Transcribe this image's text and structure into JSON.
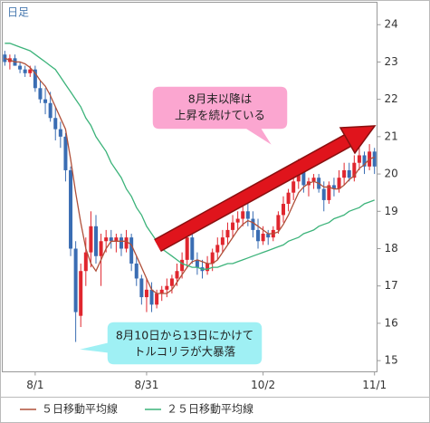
{
  "chart_data": {
    "type": "candlestick",
    "title": "日足",
    "categories": [
      null,
      null,
      null,
      null,
      null,
      null,
      "8/1",
      null,
      null,
      null,
      null,
      null,
      null,
      null,
      null,
      null,
      null,
      null,
      null,
      null,
      null,
      null,
      null,
      null,
      null,
      null,
      null,
      null,
      "8/31",
      null,
      null,
      null,
      null,
      null,
      null,
      null,
      null,
      null,
      null,
      null,
      null,
      null,
      null,
      null,
      null,
      null,
      null,
      null,
      null,
      null,
      null,
      "10/2",
      null,
      null,
      null,
      null,
      null,
      null,
      null,
      null,
      null,
      null,
      null,
      null,
      null,
      null,
      null,
      null,
      null,
      null,
      null,
      null,
      null,
      "11/1"
    ],
    "open": [
      23.2,
      23.0,
      23.1,
      22.9,
      22.8,
      22.7,
      22.8,
      22.3,
      22.0,
      21.9,
      21.5,
      21.2,
      21.0,
      20.1,
      18.0,
      16.2,
      17.4,
      17.9,
      18.6,
      17.8,
      18.2,
      18.3,
      18.2,
      18.3,
      18.0,
      18.3,
      17.6,
      17.2,
      16.7,
      16.9,
      16.5,
      16.8,
      16.9,
      17.0,
      17.2,
      17.4,
      17.7,
      18.3,
      17.7,
      17.5,
      17.4,
      17.6,
      17.9,
      18.1,
      18.3,
      18.5,
      18.7,
      18.8,
      19.0,
      18.8,
      18.5,
      18.2,
      18.4,
      18.3,
      18.5,
      18.9,
      19.2,
      19.5,
      19.8,
      20.1,
      19.7,
      19.8,
      19.9,
      19.6,
      19.3,
      19.7,
      19.6,
      19.9,
      20.1,
      19.9,
      20.3,
      20.5,
      20.2,
      20.6
    ],
    "high": [
      23.3,
      23.2,
      23.2,
      23.0,
      22.9,
      22.9,
      22.9,
      22.5,
      22.3,
      22.2,
      21.8,
      21.4,
      21.1,
      20.2,
      18.2,
      17.6,
      18.3,
      19.0,
      18.9,
      18.4,
      18.5,
      18.5,
      18.4,
      18.4,
      18.5,
      18.4,
      17.8,
      17.3,
      17.2,
      17.1,
      16.9,
      17.0,
      17.2,
      17.3,
      17.6,
      17.9,
      18.6,
      18.5,
      17.9,
      17.7,
      17.8,
      18.0,
      18.3,
      18.5,
      18.7,
      18.9,
      19.0,
      19.2,
      19.3,
      19.0,
      18.8,
      18.6,
      18.5,
      18.6,
      19.0,
      19.4,
      19.6,
      20.0,
      20.4,
      20.2,
      19.9,
      20.0,
      20.0,
      19.8,
      19.8,
      19.9,
      20.1,
      20.3,
      20.3,
      20.5,
      20.7,
      20.6,
      20.8,
      20.7
    ],
    "low": [
      22.9,
      22.8,
      22.9,
      22.7,
      22.6,
      22.6,
      22.2,
      21.9,
      21.6,
      21.4,
      20.9,
      20.7,
      19.8,
      17.8,
      15.5,
      15.9,
      17.0,
      17.5,
      17.6,
      17.0,
      17.9,
      18.0,
      17.9,
      17.8,
      17.9,
      17.4,
      17.0,
      16.5,
      16.3,
      16.3,
      16.4,
      16.6,
      16.7,
      16.8,
      17.0,
      17.2,
      17.5,
      17.6,
      17.3,
      17.2,
      17.3,
      17.4,
      17.7,
      17.9,
      18.1,
      18.3,
      18.5,
      18.6,
      18.6,
      18.3,
      18.0,
      18.1,
      18.1,
      18.2,
      18.4,
      18.7,
      19.0,
      19.3,
      19.6,
      19.5,
      19.4,
      19.6,
      19.5,
      19.0,
      19.2,
      19.4,
      19.5,
      19.7,
      19.8,
      19.8,
      20.1,
      20.0,
      20.1,
      20.0
    ],
    "close": [
      23.0,
      23.1,
      22.9,
      22.8,
      22.7,
      22.8,
      22.3,
      22.0,
      21.9,
      21.5,
      21.2,
      21.0,
      20.1,
      18.0,
      16.3,
      17.4,
      17.9,
      18.6,
      17.8,
      18.2,
      18.3,
      18.2,
      18.3,
      18.0,
      18.3,
      17.6,
      17.2,
      16.7,
      16.9,
      16.5,
      16.8,
      16.9,
      17.0,
      17.2,
      17.4,
      17.7,
      18.3,
      17.7,
      17.5,
      17.4,
      17.6,
      17.9,
      18.1,
      18.3,
      18.5,
      18.7,
      18.8,
      19.0,
      18.8,
      18.5,
      18.2,
      18.4,
      18.3,
      18.5,
      18.9,
      19.2,
      19.5,
      19.8,
      20.1,
      19.7,
      19.8,
      19.9,
      19.6,
      19.3,
      19.7,
      19.6,
      19.9,
      20.1,
      19.9,
      20.3,
      20.5,
      20.2,
      20.6,
      20.2
    ],
    "up_color": "#e0262e",
    "down_color": "#3a6db3",
    "series": [
      {
        "name": "５日移動平均線",
        "color": "#b0503a",
        "values": [
          23.1,
          23.05,
          23.0,
          23.0,
          22.95,
          22.85,
          22.7,
          22.5,
          22.35,
          22.1,
          21.8,
          21.5,
          21.2,
          20.4,
          19.5,
          18.7,
          18.0,
          17.6,
          17.4,
          17.7,
          18.0,
          18.2,
          18.2,
          18.2,
          18.2,
          18.1,
          17.8,
          17.5,
          17.2,
          16.9,
          16.8,
          16.8,
          16.8,
          16.9,
          17.1,
          17.3,
          17.5,
          17.65,
          17.7,
          17.65,
          17.6,
          17.6,
          17.7,
          17.9,
          18.1,
          18.3,
          18.5,
          18.65,
          18.75,
          18.7,
          18.6,
          18.5,
          18.4,
          18.4,
          18.45,
          18.65,
          18.9,
          19.2,
          19.5,
          19.65,
          19.75,
          19.8,
          19.75,
          19.65,
          19.65,
          19.6,
          19.6,
          19.7,
          19.85,
          19.95,
          20.15,
          20.25,
          20.4,
          20.45
        ]
      },
      {
        "name": "２５日移動平均線",
        "color": "#3cb37a",
        "values": [
          23.5,
          23.5,
          23.45,
          23.4,
          23.35,
          23.3,
          23.2,
          23.1,
          23.0,
          22.9,
          22.8,
          22.6,
          22.4,
          22.2,
          22.0,
          21.8,
          21.5,
          21.3,
          21.0,
          20.8,
          20.6,
          20.3,
          20.1,
          19.9,
          19.6,
          19.4,
          19.1,
          18.9,
          18.6,
          18.4,
          18.2,
          18.0,
          17.9,
          17.8,
          17.7,
          17.6,
          17.55,
          17.5,
          17.5,
          17.45,
          17.45,
          17.5,
          17.5,
          17.55,
          17.6,
          17.6,
          17.65,
          17.7,
          17.75,
          17.8,
          17.85,
          17.9,
          17.95,
          18.0,
          18.05,
          18.1,
          18.2,
          18.25,
          18.3,
          18.4,
          18.45,
          18.5,
          18.6,
          18.65,
          18.7,
          18.8,
          18.85,
          18.9,
          19.0,
          19.05,
          19.1,
          19.2,
          19.25,
          19.3
        ]
      }
    ],
    "ylim": [
      14.7,
      24.6
    ],
    "yticks": [
      15,
      16,
      17,
      18,
      19,
      20,
      21,
      22,
      23,
      24
    ],
    "grid": false,
    "annotations": [
      {
        "lines": [
          "8月末以降は",
          "上昇を続けている"
        ]
      },
      {
        "lines": [
          "8月10日から13日にかけて",
          "トルコリラが大暴落"
        ]
      }
    ]
  }
}
